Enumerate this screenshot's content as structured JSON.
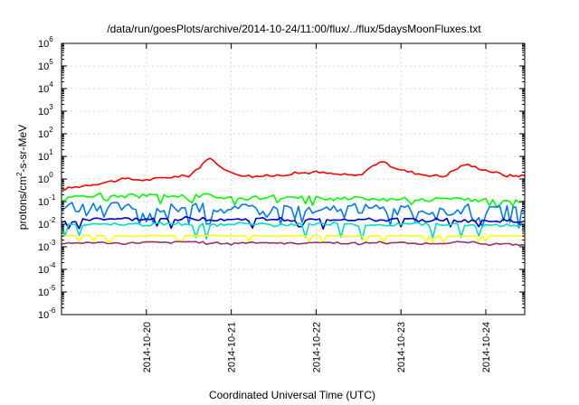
{
  "chart_data": {
    "type": "line",
    "title": "/data/run/goesPlots/archive/2014-10-24/11:00/flux/../flux/5daysMoonFluxes.txt",
    "xlabel": "Coordinated Universal Time (UTC)",
    "ylabel": {
      "prefix": "protons/cm",
      "sup": "2",
      "suffix": "-s-sr-MeV"
    },
    "xlim": [
      "2014-10-19 00:00",
      "2014-10-24 11:00"
    ],
    "x_ticks": [
      "2014-10-20",
      "2014-10-21",
      "2014-10-22",
      "2014-10-23",
      "2014-10-24"
    ],
    "y_scale": "log",
    "ylim": [
      1e-06,
      1000000.0
    ],
    "y_ticks": [
      {
        "value": 1e-06,
        "base": "10",
        "exp": "-6"
      },
      {
        "value": 1e-05,
        "base": "10",
        "exp": "-5"
      },
      {
        "value": 0.0001,
        "base": "10",
        "exp": "-4"
      },
      {
        "value": 0.001,
        "base": "10",
        "exp": "-3"
      },
      {
        "value": 0.01,
        "base": "10",
        "exp": "-2"
      },
      {
        "value": 0.1,
        "base": "10",
        "exp": "-1"
      },
      {
        "value": 1,
        "base": "10",
        "exp": "0"
      },
      {
        "value": 10,
        "base": "10",
        "exp": "1"
      },
      {
        "value": 100,
        "base": "10",
        "exp": "2"
      },
      {
        "value": 1000,
        "base": "10",
        "exp": "3"
      },
      {
        "value": 10000,
        "base": "10",
        "exp": "4"
      },
      {
        "value": 100000,
        "base": "10",
        "exp": "5"
      },
      {
        "value": 1000000,
        "base": "10",
        "exp": "6"
      }
    ],
    "grid": true,
    "legend": "none",
    "x_dates": [
      "2014-10-19 00:00",
      "2014-10-19 06:00",
      "2014-10-19 12:00",
      "2014-10-19 18:00",
      "2014-10-20 00:00",
      "2014-10-20 06:00",
      "2014-10-20 12:00",
      "2014-10-20 18:00",
      "2014-10-21 00:00",
      "2014-10-21 06:00",
      "2014-10-21 12:00",
      "2014-10-21 18:00",
      "2014-10-22 00:00",
      "2014-10-22 06:00",
      "2014-10-22 12:00",
      "2014-10-22 18:00",
      "2014-10-23 00:00",
      "2014-10-23 06:00",
      "2014-10-23 12:00",
      "2014-10-23 18:00",
      "2014-10-24 00:00",
      "2014-10-24 06:00",
      "2014-10-24 11:00"
    ],
    "series": [
      {
        "color": "#ff0000",
        "values": [
          0.35,
          0.5,
          0.7,
          1.0,
          0.9,
          1.2,
          1.4,
          8.0,
          1.8,
          1.3,
          1.4,
          1.8,
          2.0,
          1.6,
          1.4,
          6.0,
          2.5,
          1.6,
          1.3,
          4.5,
          2.5,
          1.4,
          1.4
        ]
      },
      {
        "color": "#00ff00",
        "values": [
          0.12,
          0.18,
          0.2,
          0.18,
          0.18,
          0.17,
          0.19,
          0.18,
          0.15,
          0.14,
          0.16,
          0.14,
          0.15,
          0.13,
          0.16,
          0.12,
          0.14,
          0.12,
          0.13,
          0.12,
          0.12,
          0.11,
          0.11
        ]
      },
      {
        "color": "#0078ff",
        "values": [
          0.05,
          0.06,
          0.05,
          0.07,
          0.02,
          0.06,
          0.05,
          0.06,
          0.04,
          0.06,
          0.05,
          0.06,
          0.03,
          0.06,
          0.05,
          0.05,
          0.04,
          0.05,
          0.03,
          0.05,
          0.04,
          0.04,
          0.035
        ]
      },
      {
        "color": "#0000cc",
        "values": [
          0.012,
          0.015,
          0.018,
          0.017,
          0.016,
          0.017,
          0.018,
          0.017,
          0.016,
          0.016,
          0.017,
          0.016,
          0.015,
          0.017,
          0.016,
          0.015,
          0.016,
          0.015,
          0.016,
          0.014,
          0.015,
          0.014,
          0.014
        ]
      },
      {
        "color": "#00e0c0",
        "values": [
          0.009,
          0.01,
          0.011,
          0.01,
          0.009,
          0.011,
          0.01,
          0.009,
          0.01,
          0.011,
          0.009,
          0.01,
          0.01,
          0.011,
          0.009,
          0.009,
          0.01,
          0.01,
          0.009,
          0.01,
          0.009,
          0.009,
          0.009
        ]
      },
      {
        "color": "#ffff00",
        "values": [
          0.003,
          0.0032,
          0.0031,
          0.0029,
          0.003,
          0.0031,
          0.003,
          0.0032,
          0.003,
          0.0031,
          0.0029,
          0.003,
          0.0031,
          0.003,
          0.0029,
          0.003,
          0.0031,
          0.003,
          0.0029,
          0.003,
          0.0031,
          0.003,
          0.003
        ]
      },
      {
        "color": "#993366",
        "values": [
          0.0014,
          0.0016,
          0.0015,
          0.0014,
          0.0016,
          0.0015,
          0.0017,
          0.0015,
          0.0014,
          0.0016,
          0.0015,
          0.0014,
          0.0016,
          0.0015,
          0.0014,
          0.0016,
          0.0015,
          0.0014,
          0.0015,
          0.0016,
          0.0014,
          0.0013,
          0.0012
        ]
      }
    ]
  }
}
